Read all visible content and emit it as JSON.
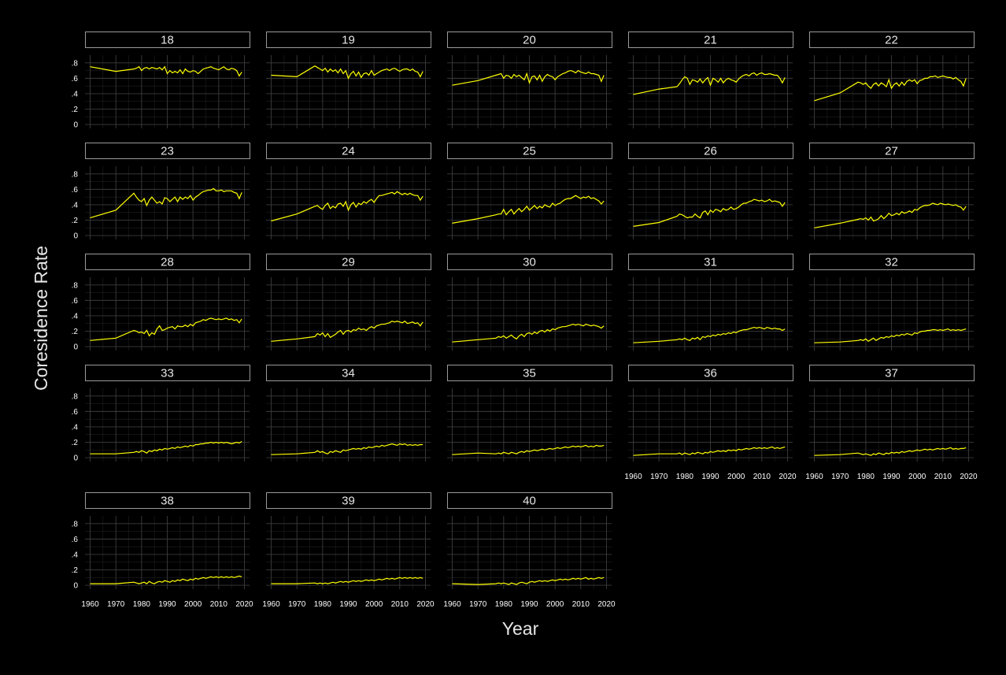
{
  "chart_data": {
    "type": "line",
    "layout": "faceted small multiples",
    "xlabel": "Year",
    "ylabel": "Coresidence Rate",
    "xlim": [
      1958,
      2022
    ],
    "ylim": [
      -0.05,
      0.9
    ],
    "x_ticks": [
      1960,
      1970,
      1980,
      1990,
      2000,
      2010,
      2020
    ],
    "x_tick_labels": [
      "1960",
      "1970",
      "1980",
      "1990",
      "2000",
      "2010",
      "2020"
    ],
    "y_ticks": [
      0,
      0.2,
      0.4,
      0.6,
      0.8
    ],
    "y_tick_labels": [
      "0",
      ".2",
      ".4",
      ".6",
      ".8"
    ],
    "grid": true,
    "line_color": "#ffff00",
    "background": "#000000",
    "x": [
      1960,
      1970,
      1977,
      1978,
      1979,
      1980,
      1981,
      1982,
      1983,
      1984,
      1985,
      1986,
      1987,
      1988,
      1989,
      1990,
      1991,
      1992,
      1993,
      1994,
      1995,
      1996,
      1997,
      1998,
      1999,
      2000,
      2001,
      2002,
      2003,
      2004,
      2005,
      2006,
      2007,
      2008,
      2009,
      2010,
      2011,
      2012,
      2013,
      2014,
      2015,
      2016,
      2017,
      2018,
      2019
    ],
    "panels": [
      {
        "label": "18",
        "values": [
          0.75,
          0.69,
          0.72,
          0.73,
          0.75,
          0.7,
          0.73,
          0.74,
          0.72,
          0.74,
          0.73,
          0.72,
          0.74,
          0.71,
          0.75,
          0.66,
          0.7,
          0.67,
          0.69,
          0.67,
          0.71,
          0.66,
          0.72,
          0.69,
          0.68,
          0.7,
          0.69,
          0.66,
          0.69,
          0.72,
          0.73,
          0.74,
          0.75,
          0.73,
          0.72,
          0.71,
          0.73,
          0.75,
          0.72,
          0.71,
          0.73,
          0.72,
          0.7,
          0.63,
          0.68
        ]
      },
      {
        "label": "19",
        "values": [
          0.64,
          0.62,
          0.76,
          0.74,
          0.72,
          0.7,
          0.73,
          0.68,
          0.72,
          0.69,
          0.71,
          0.67,
          0.72,
          0.66,
          0.7,
          0.6,
          0.66,
          0.69,
          0.63,
          0.68,
          0.61,
          0.66,
          0.67,
          0.64,
          0.7,
          0.64,
          0.66,
          0.68,
          0.7,
          0.71,
          0.72,
          0.7,
          0.72,
          0.73,
          0.71,
          0.69,
          0.71,
          0.72,
          0.72,
          0.7,
          0.72,
          0.69,
          0.68,
          0.62,
          0.69
        ]
      },
      {
        "label": "20",
        "values": [
          0.51,
          0.57,
          0.64,
          0.65,
          0.66,
          0.6,
          0.64,
          0.63,
          0.6,
          0.65,
          0.62,
          0.64,
          0.61,
          0.58,
          0.66,
          0.54,
          0.62,
          0.63,
          0.58,
          0.64,
          0.56,
          0.62,
          0.65,
          0.63,
          0.62,
          0.58,
          0.62,
          0.64,
          0.66,
          0.67,
          0.69,
          0.7,
          0.69,
          0.67,
          0.7,
          0.68,
          0.67,
          0.66,
          0.68,
          0.66,
          0.66,
          0.65,
          0.64,
          0.56,
          0.64
        ]
      },
      {
        "label": "21",
        "values": [
          0.39,
          0.46,
          0.49,
          0.53,
          0.58,
          0.62,
          0.6,
          0.52,
          0.58,
          0.57,
          0.55,
          0.59,
          0.54,
          0.58,
          0.61,
          0.51,
          0.6,
          0.58,
          0.55,
          0.6,
          0.54,
          0.58,
          0.6,
          0.58,
          0.57,
          0.55,
          0.59,
          0.62,
          0.64,
          0.65,
          0.63,
          0.66,
          0.67,
          0.64,
          0.66,
          0.67,
          0.65,
          0.65,
          0.66,
          0.65,
          0.64,
          0.64,
          0.6,
          0.54,
          0.61
        ]
      },
      {
        "label": "22",
        "values": [
          0.31,
          0.41,
          0.55,
          0.54,
          0.52,
          0.54,
          0.5,
          0.47,
          0.52,
          0.54,
          0.5,
          0.54,
          0.52,
          0.49,
          0.58,
          0.47,
          0.52,
          0.54,
          0.5,
          0.55,
          0.51,
          0.56,
          0.58,
          0.56,
          0.58,
          0.53,
          0.57,
          0.58,
          0.6,
          0.6,
          0.62,
          0.62,
          0.63,
          0.61,
          0.62,
          0.63,
          0.62,
          0.61,
          0.61,
          0.59,
          0.61,
          0.58,
          0.56,
          0.5,
          0.6
        ]
      },
      {
        "label": "23",
        "values": [
          0.23,
          0.33,
          0.55,
          0.5,
          0.46,
          0.44,
          0.48,
          0.39,
          0.46,
          0.5,
          0.46,
          0.42,
          0.44,
          0.41,
          0.49,
          0.48,
          0.44,
          0.47,
          0.5,
          0.44,
          0.5,
          0.47,
          0.5,
          0.48,
          0.52,
          0.46,
          0.5,
          0.52,
          0.55,
          0.57,
          0.58,
          0.59,
          0.59,
          0.61,
          0.58,
          0.58,
          0.59,
          0.57,
          0.58,
          0.58,
          0.58,
          0.56,
          0.55,
          0.48,
          0.56
        ]
      },
      {
        "label": "24",
        "values": [
          0.19,
          0.28,
          0.38,
          0.39,
          0.36,
          0.34,
          0.39,
          0.42,
          0.35,
          0.38,
          0.36,
          0.41,
          0.42,
          0.38,
          0.44,
          0.33,
          0.4,
          0.43,
          0.37,
          0.42,
          0.4,
          0.44,
          0.42,
          0.45,
          0.47,
          0.43,
          0.48,
          0.52,
          0.52,
          0.53,
          0.54,
          0.55,
          0.56,
          0.54,
          0.57,
          0.55,
          0.53,
          0.55,
          0.53,
          0.55,
          0.53,
          0.52,
          0.52,
          0.46,
          0.51
        ]
      },
      {
        "label": "25",
        "values": [
          0.16,
          0.22,
          0.27,
          0.28,
          0.28,
          0.34,
          0.27,
          0.31,
          0.34,
          0.28,
          0.32,
          0.35,
          0.31,
          0.34,
          0.38,
          0.33,
          0.36,
          0.39,
          0.35,
          0.38,
          0.36,
          0.4,
          0.38,
          0.37,
          0.42,
          0.39,
          0.41,
          0.42,
          0.45,
          0.47,
          0.48,
          0.48,
          0.5,
          0.52,
          0.5,
          0.48,
          0.5,
          0.49,
          0.51,
          0.48,
          0.49,
          0.47,
          0.45,
          0.41,
          0.45
        ]
      },
      {
        "label": "26",
        "values": [
          0.12,
          0.17,
          0.25,
          0.28,
          0.27,
          0.25,
          0.23,
          0.24,
          0.24,
          0.28,
          0.25,
          0.23,
          0.3,
          0.32,
          0.27,
          0.33,
          0.3,
          0.34,
          0.33,
          0.31,
          0.35,
          0.33,
          0.34,
          0.37,
          0.34,
          0.35,
          0.37,
          0.4,
          0.42,
          0.42,
          0.44,
          0.45,
          0.47,
          0.46,
          0.45,
          0.46,
          0.44,
          0.45,
          0.47,
          0.44,
          0.45,
          0.44,
          0.43,
          0.38,
          0.43
        ]
      },
      {
        "label": "27",
        "values": [
          0.1,
          0.16,
          0.21,
          0.22,
          0.21,
          0.23,
          0.2,
          0.24,
          0.19,
          0.2,
          0.22,
          0.26,
          0.22,
          0.25,
          0.29,
          0.26,
          0.27,
          0.29,
          0.27,
          0.31,
          0.29,
          0.3,
          0.32,
          0.3,
          0.34,
          0.33,
          0.36,
          0.38,
          0.39,
          0.39,
          0.4,
          0.42,
          0.41,
          0.4,
          0.42,
          0.41,
          0.4,
          0.41,
          0.4,
          0.39,
          0.4,
          0.38,
          0.37,
          0.33,
          0.38
        ]
      },
      {
        "label": "28",
        "values": [
          0.08,
          0.11,
          0.21,
          0.2,
          0.18,
          0.19,
          0.17,
          0.21,
          0.14,
          0.18,
          0.16,
          0.23,
          0.27,
          0.21,
          0.22,
          0.24,
          0.25,
          0.26,
          0.23,
          0.27,
          0.26,
          0.26,
          0.28,
          0.26,
          0.29,
          0.27,
          0.31,
          0.32,
          0.33,
          0.35,
          0.34,
          0.36,
          0.37,
          0.36,
          0.35,
          0.36,
          0.35,
          0.36,
          0.37,
          0.35,
          0.36,
          0.34,
          0.35,
          0.31,
          0.36
        ]
      },
      {
        "label": "29",
        "values": [
          0.07,
          0.1,
          0.13,
          0.17,
          0.15,
          0.18,
          0.13,
          0.17,
          0.12,
          0.14,
          0.16,
          0.19,
          0.21,
          0.16,
          0.2,
          0.21,
          0.19,
          0.22,
          0.21,
          0.24,
          0.22,
          0.23,
          0.21,
          0.24,
          0.26,
          0.24,
          0.27,
          0.28,
          0.29,
          0.29,
          0.3,
          0.31,
          0.33,
          0.32,
          0.33,
          0.32,
          0.31,
          0.33,
          0.3,
          0.31,
          0.32,
          0.3,
          0.31,
          0.27,
          0.32
        ]
      },
      {
        "label": "30",
        "values": [
          0.06,
          0.09,
          0.11,
          0.13,
          0.12,
          0.14,
          0.11,
          0.13,
          0.15,
          0.12,
          0.1,
          0.14,
          0.16,
          0.13,
          0.17,
          0.18,
          0.16,
          0.19,
          0.17,
          0.2,
          0.21,
          0.19,
          0.22,
          0.2,
          0.23,
          0.22,
          0.24,
          0.25,
          0.26,
          0.26,
          0.27,
          0.28,
          0.29,
          0.28,
          0.29,
          0.28,
          0.27,
          0.29,
          0.28,
          0.27,
          0.28,
          0.27,
          0.26,
          0.24,
          0.27
        ]
      },
      {
        "label": "31",
        "values": [
          0.05,
          0.07,
          0.09,
          0.1,
          0.09,
          0.11,
          0.09,
          0.08,
          0.11,
          0.1,
          0.12,
          0.09,
          0.13,
          0.12,
          0.14,
          0.13,
          0.15,
          0.14,
          0.16,
          0.15,
          0.17,
          0.16,
          0.18,
          0.17,
          0.19,
          0.18,
          0.2,
          0.21,
          0.22,
          0.22,
          0.23,
          0.24,
          0.25,
          0.24,
          0.25,
          0.24,
          0.23,
          0.25,
          0.24,
          0.23,
          0.24,
          0.23,
          0.23,
          0.21,
          0.23
        ]
      },
      {
        "label": "32",
        "values": [
          0.05,
          0.06,
          0.08,
          0.09,
          0.08,
          0.1,
          0.07,
          0.09,
          0.11,
          0.08,
          0.1,
          0.12,
          0.11,
          0.13,
          0.12,
          0.14,
          0.13,
          0.15,
          0.14,
          0.16,
          0.15,
          0.17,
          0.16,
          0.15,
          0.18,
          0.17,
          0.19,
          0.2,
          0.2,
          0.21,
          0.21,
          0.22,
          0.22,
          0.21,
          0.22,
          0.21,
          0.22,
          0.23,
          0.21,
          0.22,
          0.21,
          0.22,
          0.21,
          0.22,
          0.23
        ]
      },
      {
        "label": "33",
        "values": [
          0.05,
          0.05,
          0.07,
          0.08,
          0.07,
          0.09,
          0.08,
          0.06,
          0.09,
          0.08,
          0.1,
          0.09,
          0.11,
          0.1,
          0.12,
          0.11,
          0.12,
          0.13,
          0.12,
          0.14,
          0.13,
          0.14,
          0.15,
          0.14,
          0.16,
          0.15,
          0.17,
          0.17,
          0.18,
          0.18,
          0.19,
          0.19,
          0.2,
          0.19,
          0.2,
          0.19,
          0.2,
          0.19,
          0.2,
          0.19,
          0.18,
          0.19,
          0.2,
          0.19,
          0.21
        ]
      },
      {
        "label": "34",
        "values": [
          0.04,
          0.05,
          0.07,
          0.09,
          0.07,
          0.08,
          0.06,
          0.05,
          0.08,
          0.07,
          0.09,
          0.08,
          0.07,
          0.1,
          0.09,
          0.1,
          0.11,
          0.12,
          0.11,
          0.12,
          0.11,
          0.13,
          0.12,
          0.14,
          0.13,
          0.14,
          0.15,
          0.14,
          0.16,
          0.15,
          0.16,
          0.17,
          0.18,
          0.17,
          0.16,
          0.18,
          0.17,
          0.18,
          0.16,
          0.17,
          0.16,
          0.17,
          0.16,
          0.17,
          0.17
        ]
      },
      {
        "label": "35",
        "values": [
          0.04,
          0.06,
          0.05,
          0.06,
          0.05,
          0.07,
          0.06,
          0.05,
          0.07,
          0.06,
          0.05,
          0.07,
          0.08,
          0.07,
          0.09,
          0.08,
          0.09,
          0.1,
          0.09,
          0.1,
          0.11,
          0.1,
          0.11,
          0.12,
          0.11,
          0.12,
          0.13,
          0.12,
          0.13,
          0.14,
          0.13,
          0.14,
          0.15,
          0.14,
          0.15,
          0.14,
          0.15,
          0.16,
          0.14,
          0.15,
          0.14,
          0.16,
          0.15,
          0.15,
          0.16
        ]
      },
      {
        "label": "36",
        "values": [
          0.03,
          0.05,
          0.05,
          0.06,
          0.04,
          0.06,
          0.05,
          0.04,
          0.06,
          0.05,
          0.07,
          0.06,
          0.05,
          0.07,
          0.06,
          0.08,
          0.07,
          0.08,
          0.09,
          0.08,
          0.09,
          0.08,
          0.1,
          0.09,
          0.1,
          0.09,
          0.11,
          0.1,
          0.11,
          0.12,
          0.11,
          0.12,
          0.13,
          0.12,
          0.13,
          0.12,
          0.13,
          0.12,
          0.13,
          0.14,
          0.12,
          0.13,
          0.12,
          0.13,
          0.14
        ]
      },
      {
        "label": "37",
        "values": [
          0.03,
          0.04,
          0.06,
          0.05,
          0.04,
          0.05,
          0.04,
          0.03,
          0.05,
          0.04,
          0.06,
          0.05,
          0.04,
          0.06,
          0.05,
          0.07,
          0.06,
          0.07,
          0.06,
          0.08,
          0.07,
          0.08,
          0.09,
          0.08,
          0.09,
          0.1,
          0.09,
          0.1,
          0.11,
          0.1,
          0.11,
          0.1,
          0.11,
          0.12,
          0.11,
          0.12,
          0.11,
          0.12,
          0.13,
          0.11,
          0.12,
          0.11,
          0.12,
          0.12,
          0.13
        ]
      },
      {
        "label": "38",
        "values": [
          0.02,
          0.02,
          0.04,
          0.03,
          0.02,
          0.03,
          0.04,
          0.02,
          0.05,
          0.03,
          0.02,
          0.04,
          0.05,
          0.04,
          0.06,
          0.05,
          0.04,
          0.06,
          0.05,
          0.07,
          0.06,
          0.08,
          0.07,
          0.06,
          0.08,
          0.07,
          0.09,
          0.08,
          0.09,
          0.1,
          0.09,
          0.1,
          0.11,
          0.1,
          0.11,
          0.1,
          0.11,
          0.1,
          0.11,
          0.1,
          0.11,
          0.1,
          0.11,
          0.12,
          0.11
        ]
      },
      {
        "label": "39",
        "values": [
          0.02,
          0.02,
          0.03,
          0.02,
          0.03,
          0.02,
          0.03,
          0.02,
          0.03,
          0.04,
          0.03,
          0.04,
          0.05,
          0.04,
          0.05,
          0.04,
          0.05,
          0.06,
          0.05,
          0.06,
          0.05,
          0.06,
          0.07,
          0.06,
          0.07,
          0.06,
          0.07,
          0.08,
          0.07,
          0.08,
          0.09,
          0.08,
          0.09,
          0.08,
          0.09,
          0.1,
          0.09,
          0.1,
          0.09,
          0.1,
          0.09,
          0.1,
          0.09,
          0.1,
          0.09
        ]
      },
      {
        "label": "40",
        "values": [
          0.02,
          0.01,
          0.02,
          0.03,
          0.02,
          0.03,
          0.02,
          0.01,
          0.03,
          0.02,
          0.01,
          0.03,
          0.04,
          0.03,
          0.02,
          0.04,
          0.05,
          0.04,
          0.05,
          0.06,
          0.05,
          0.06,
          0.05,
          0.06,
          0.07,
          0.06,
          0.07,
          0.08,
          0.07,
          0.08,
          0.07,
          0.08,
          0.09,
          0.08,
          0.09,
          0.08,
          0.09,
          0.1,
          0.08,
          0.09,
          0.08,
          0.09,
          0.1,
          0.09,
          0.1
        ]
      }
    ]
  }
}
